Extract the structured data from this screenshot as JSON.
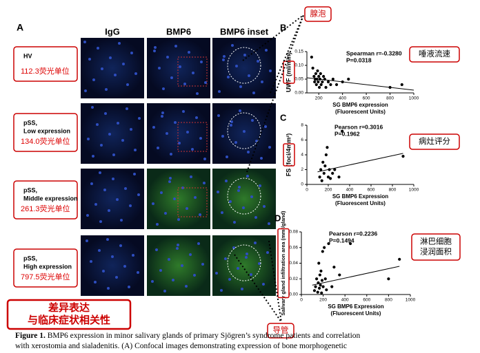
{
  "panel_a": {
    "label": "A",
    "columns": [
      "IgG",
      "BMP6",
      "BMP6 inset"
    ],
    "rows": [
      {
        "lines": [
          "HV"
        ],
        "value": "112.3荧光单位"
      },
      {
        "lines": [
          "pSS,",
          "Low expression"
        ],
        "value": "134.0荧光单位"
      },
      {
        "lines": [
          "pSS,",
          "Middle expression"
        ],
        "value": "261.3荧光单位"
      },
      {
        "lines": [
          "pSS,",
          "High expression"
        ],
        "value": "797.5荧光单位"
      }
    ]
  },
  "chart_data": [
    {
      "type": "scatter",
      "panel": "B",
      "ylabel": "UWF (ml/min)",
      "xlabel": [
        "SG BMP6 expression",
        "(Fluorescent Units)"
      ],
      "stats": [
        "Spearman r=-0.3280",
        "P=0.0318"
      ],
      "x": [
        140,
        150,
        160,
        165,
        170,
        175,
        180,
        185,
        190,
        195,
        200,
        205,
        210,
        215,
        220,
        230,
        240,
        250,
        260,
        280,
        300,
        320,
        350,
        400,
        450,
        800,
        900
      ],
      "y": [
        0.13,
        0.09,
        0.06,
        0.04,
        0.05,
        0.07,
        0.03,
        0.05,
        0.08,
        0.04,
        0.06,
        0.02,
        0.05,
        0.07,
        0.03,
        0.04,
        0.06,
        0.05,
        0.02,
        0.04,
        0.03,
        0.05,
        0.03,
        0.04,
        0.05,
        0.02,
        0.03
      ],
      "fit": {
        "x": [
          100,
          1000
        ],
        "y": [
          0.055,
          0.01
        ]
      },
      "xlim": [
        100,
        1000
      ],
      "xticks": [
        200,
        400,
        600,
        800,
        1000
      ],
      "ylim": [
        0,
        0.15
      ],
      "yticks": [
        {
          "value": 0,
          "label": "0.00"
        },
        0.05,
        {
          "value": 0.1,
          "label": "0.10"
        },
        0.15
      ],
      "color": "#000000"
    },
    {
      "type": "scatter",
      "panel": "C",
      "ylabel": "FS (foci/4mm²)",
      "xlabel": [
        "SG BMP6 Expression",
        "(Fluorescent Units)"
      ],
      "stats": [
        "Pearson r=0.3016",
        "P=0.1962"
      ],
      "x": [
        120,
        130,
        140,
        150,
        160,
        170,
        180,
        190,
        200,
        210,
        220,
        240,
        260,
        300,
        330,
        900
      ],
      "y": [
        1,
        2,
        0.5,
        3,
        1.5,
        2.5,
        4,
        5,
        1,
        2,
        0.8,
        1.5,
        2,
        1,
        7.2,
        3.8
      ],
      "fit": {
        "x": [
          100,
          900
        ],
        "y": [
          1.7,
          4.2
        ]
      },
      "xlim": [
        0,
        1000
      ],
      "xticks": [
        0,
        200,
        400,
        600,
        800,
        1000
      ],
      "ylim": [
        0,
        8
      ],
      "yticks": [
        0,
        2,
        4,
        6,
        8
      ],
      "color": "#000000"
    },
    {
      "type": "scatter",
      "panel": "D",
      "ylabel": "Salivary gland infiltration area (mm²/gland)",
      "xlabel": [
        "SG BMP6 Expression",
        "(Fluorescent Units)"
      ],
      "stats": [
        "Pearson r=0.2236",
        "P=0.1494"
      ],
      "x": [
        120,
        130,
        140,
        150,
        155,
        160,
        165,
        170,
        175,
        180,
        185,
        190,
        195,
        200,
        210,
        220,
        230,
        250,
        280,
        300,
        350,
        450,
        800,
        900
      ],
      "y": [
        0.005,
        0.01,
        0.02,
        0.003,
        0.015,
        0.04,
        0.008,
        0.025,
        0.012,
        0.03,
        0.002,
        0.018,
        0.055,
        0.01,
        0.06,
        0.02,
        0.006,
        0.065,
        0.01,
        0.035,
        0.025,
        0.065,
        0.02,
        0.045
      ],
      "fit": {
        "x": [
          100,
          900
        ],
        "y": [
          0.012,
          0.036
        ]
      },
      "xlim": [
        0,
        1000
      ],
      "xticks": [
        0,
        200,
        400,
        600,
        800,
        1000
      ],
      "ylim": [
        0,
        0.08
      ],
      "yticks": [
        {
          "value": 0,
          "label": "0.00"
        },
        {
          "value": 0.02,
          "label": "0.02"
        },
        {
          "value": 0.04,
          "label": "0.04"
        },
        {
          "value": 0.06,
          "label": "0.06"
        },
        {
          "value": 0.08,
          "label": "0.08"
        }
      ],
      "color": "#000000"
    }
  ],
  "annotations": [
    {
      "lines": [
        "腺泡"
      ]
    },
    {
      "lines": [
        "唾液流速"
      ]
    },
    {
      "lines": [
        "病灶评分"
      ]
    },
    {
      "lines": [
        "淋巴细胞",
        "浸润面积"
      ]
    },
    {
      "lines": [
        "导管"
      ]
    },
    {
      "lines": [
        "差异表达",
        "与临床症状相关性"
      ]
    }
  ],
  "caption": {
    "label": "Figure 1.",
    "lines": [
      " BMP6 expression in minor salivary glands of primary Sjögren’s syndrome patients and correlation",
      "with xerostomia and sialadenitis. (A) Confocal images demonstrating expression of bone morphogenetic"
    ]
  }
}
